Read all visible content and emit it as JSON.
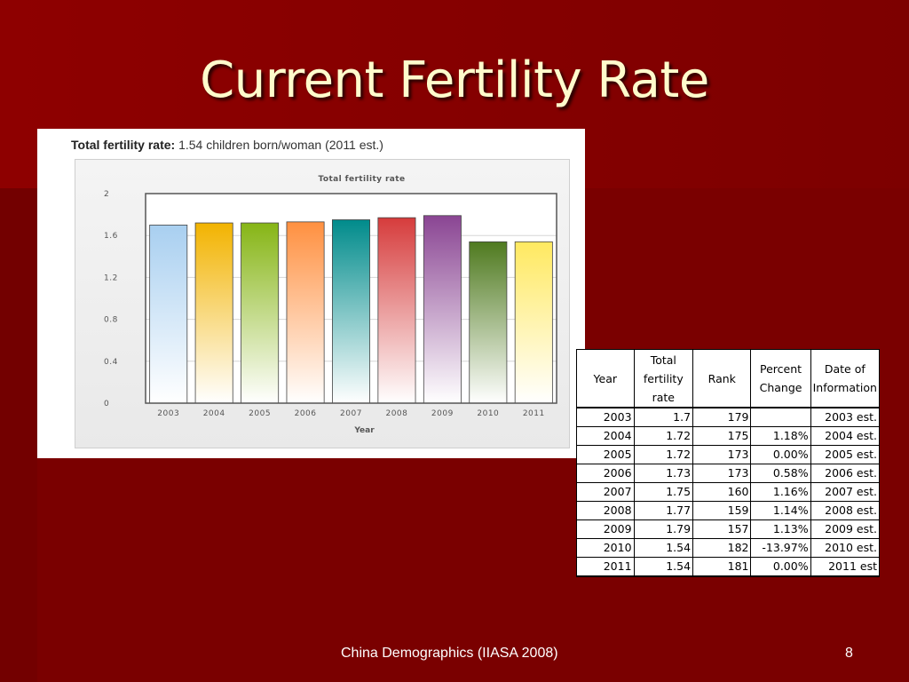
{
  "slide": {
    "title": "Current Fertility Rate",
    "footer_left": "China Demographics (IIASA 2008)",
    "footer_right": "8"
  },
  "chart_heading": {
    "label": "Total fertility rate:",
    "value": "1.54 children born/woman (2011 est.)"
  },
  "chart_data": {
    "type": "bar",
    "title": "Total fertility rate",
    "xlabel": "Year",
    "ylabel": "",
    "categories": [
      "2003",
      "2004",
      "2005",
      "2006",
      "2007",
      "2008",
      "2009",
      "2010",
      "2011"
    ],
    "values": [
      1.7,
      1.72,
      1.72,
      1.73,
      1.75,
      1.77,
      1.79,
      1.54,
      1.54
    ],
    "ylim": [
      0,
      2
    ],
    "yticks": [
      "0",
      "0.4",
      "0.8",
      "1.2",
      "1.6",
      "2"
    ],
    "grid": true,
    "bar_colors": [
      "#a8cff0",
      "#f2b300",
      "#86b515",
      "#ff9040",
      "#008b8b",
      "#d63c3c",
      "#8a4593",
      "#4f7a1f",
      "#ffe960"
    ]
  },
  "table": {
    "headers": [
      "Year",
      "Total fertility rate",
      "Rank",
      "Percent Change",
      "Date of Information"
    ],
    "rows": [
      [
        "2003",
        "1.7",
        "179",
        "",
        "2003 est."
      ],
      [
        "2004",
        "1.72",
        "175",
        "1.18%",
        "2004 est."
      ],
      [
        "2005",
        "1.72",
        "173",
        "0.00%",
        "2005 est."
      ],
      [
        "2006",
        "1.73",
        "173",
        "0.58%",
        "2006 est."
      ],
      [
        "2007",
        "1.75",
        "160",
        "1.16%",
        "2007 est."
      ],
      [
        "2008",
        "1.77",
        "159",
        "1.14%",
        "2008 est."
      ],
      [
        "2009",
        "1.79",
        "157",
        "1.13%",
        "2009 est."
      ],
      [
        "2010",
        "1.54",
        "182",
        "-13.97%",
        "2010 est."
      ],
      [
        "2011",
        "1.54",
        "181",
        "0.00%",
        "2011 est"
      ]
    ]
  }
}
